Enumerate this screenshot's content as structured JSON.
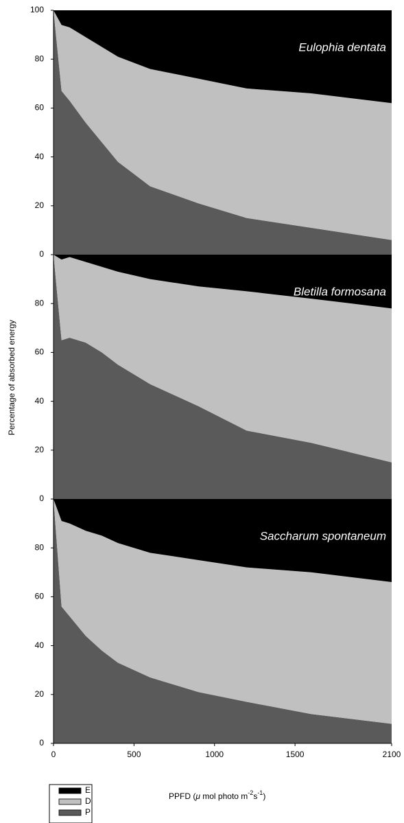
{
  "ylabel": "Percentage of absorbed energy",
  "xlabel": [
    "PPFD (",
    "μ",
    " mol photo m",
    "-2",
    "s",
    "-1",
    ")"
  ],
  "chart_data": [
    {
      "type": "area",
      "title": "Eulophia dentata",
      "x": [
        0,
        50,
        100,
        200,
        300,
        400,
        600,
        900,
        1200,
        1600,
        2100
      ],
      "series": [
        {
          "name": "E",
          "color": "#000000",
          "values": [
            0,
            6,
            7,
            11,
            15,
            19,
            24,
            28,
            32,
            34,
            38
          ]
        },
        {
          "name": "D",
          "color": "#c0c0c0",
          "values": [
            0,
            27,
            30,
            35,
            39,
            43,
            48,
            51,
            53,
            55,
            56
          ]
        },
        {
          "name": "P",
          "color": "#5a5a5a",
          "values": [
            100,
            67,
            63,
            54,
            46,
            38,
            28,
            21,
            15,
            11,
            6
          ]
        }
      ],
      "xlim": [
        0,
        2100
      ],
      "ylim": [
        0,
        100
      ],
      "yticks": [
        0,
        20,
        40,
        60,
        80,
        100
      ]
    },
    {
      "type": "area",
      "title": "Bletilla formosana",
      "x": [
        0,
        50,
        100,
        200,
        300,
        400,
        600,
        900,
        1200,
        1600,
        2100
      ],
      "series": [
        {
          "name": "E",
          "color": "#000000",
          "values": [
            0,
            2,
            1,
            3,
            5,
            7,
            10,
            13,
            15,
            18,
            22
          ]
        },
        {
          "name": "D",
          "color": "#c0c0c0",
          "values": [
            0,
            33,
            33,
            33,
            35,
            38,
            43,
            49,
            57,
            59,
            63
          ]
        },
        {
          "name": "P",
          "color": "#5a5a5a",
          "values": [
            100,
            65,
            66,
            64,
            60,
            55,
            47,
            38,
            28,
            23,
            15
          ]
        }
      ],
      "xlim": [
        0,
        2100
      ],
      "ylim": [
        0,
        100
      ],
      "yticks": [
        0,
        20,
        40,
        60,
        80
      ]
    },
    {
      "type": "area",
      "title": "Saccharum spontaneum",
      "x": [
        0,
        50,
        100,
        200,
        300,
        400,
        600,
        900,
        1200,
        1600,
        2100
      ],
      "series": [
        {
          "name": "E",
          "color": "#000000",
          "values": [
            0,
            9,
            10,
            13,
            15,
            18,
            22,
            25,
            28,
            30,
            34
          ]
        },
        {
          "name": "D",
          "color": "#c0c0c0",
          "values": [
            0,
            35,
            38,
            43,
            47,
            49,
            51,
            54,
            55,
            58,
            58
          ]
        },
        {
          "name": "P",
          "color": "#5a5a5a",
          "values": [
            100,
            56,
            52,
            44,
            38,
            33,
            27,
            21,
            17,
            12,
            8
          ]
        }
      ],
      "xlim": [
        0,
        2100
      ],
      "ylim": [
        0,
        100
      ],
      "yticks": [
        0,
        20,
        40,
        60,
        80
      ],
      "xticks": [
        0,
        500,
        1000,
        1500,
        2100
      ]
    }
  ]
}
